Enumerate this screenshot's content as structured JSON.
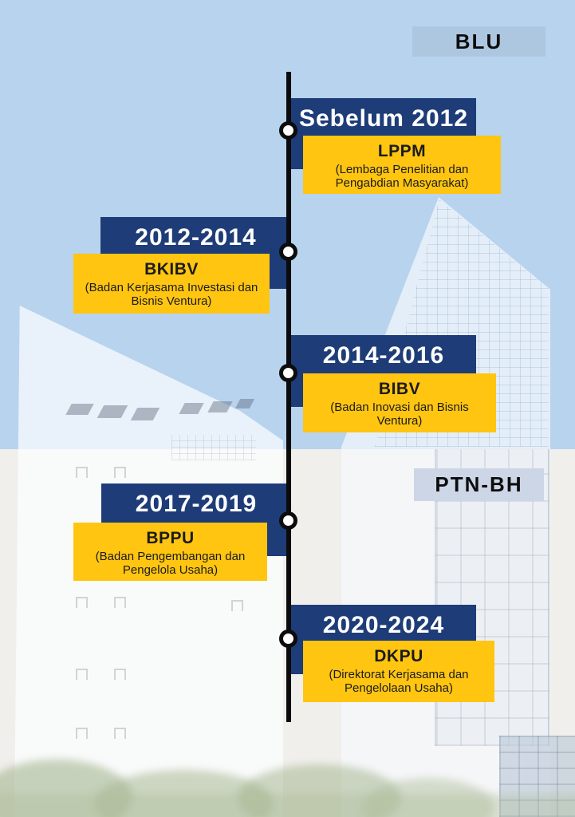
{
  "badges": {
    "blu": "BLU",
    "ptn_bh": "PTN-BH"
  },
  "timeline": {
    "entries": [
      {
        "period": "Sebelum 2012",
        "side": "right",
        "org_abbr": "LPPM",
        "org_full": "(Lembaga Penelitian dan Pengabdian Masyarakat)"
      },
      {
        "period": "2012-2014",
        "side": "left",
        "org_abbr": "BKIBV",
        "org_full": "(Badan Kerjasama Investasi dan Bisnis Ventura)"
      },
      {
        "period": "2014-2016",
        "side": "right",
        "org_abbr": "BIBV",
        "org_full": "(Badan Inovasi dan Bisnis Ventura)"
      },
      {
        "period": "2017-2019",
        "side": "left",
        "org_abbr": "BPPU",
        "org_full": "(Badan Pengembangan dan Pengelola Usaha)"
      },
      {
        "period": "2020-2024",
        "side": "right",
        "org_abbr": "DKPU",
        "org_full": "(Direktorat Kerjasama dan Pengelolaan Usaha)"
      }
    ]
  },
  "colors": {
    "navy_box": "#1e3c78",
    "yellow_box": "#ffc511",
    "sky": "#b7d3ee",
    "lower_background": "#f1efec",
    "badge_blu_bg": "#adc7e1",
    "badge_ptnbh_bg": "#cdd6e6",
    "timeline_line": "#0b0b0b",
    "period_text": "#ffffff",
    "org_text": "#1b1b1b"
  }
}
